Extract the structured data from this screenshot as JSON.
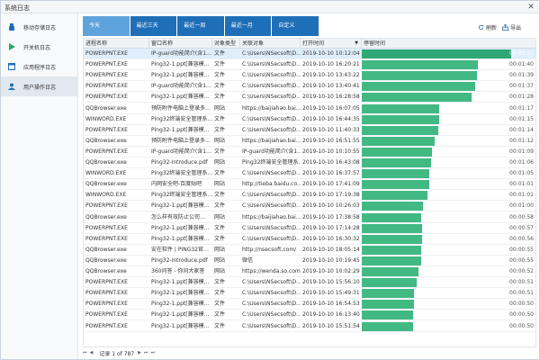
{
  "window": {
    "title": "系统日志",
    "close_glyph": "✕"
  },
  "sidebar": {
    "items": [
      {
        "label": "移动存储日志",
        "icon": "usb-icon",
        "active": false
      },
      {
        "label": "开关机日志",
        "icon": "play-icon",
        "active": false
      },
      {
        "label": "应用程序日志",
        "icon": "app-window-icon",
        "active": false
      },
      {
        "label": "用户操作日志",
        "icon": "user-icon",
        "active": true
      }
    ]
  },
  "tabs": [
    {
      "label": "今天",
      "active": true
    },
    {
      "label": "最近三天",
      "active": false
    },
    {
      "label": "最近一周",
      "active": false
    },
    {
      "label": "最近一月",
      "active": false
    },
    {
      "label": "自定义",
      "active": false
    }
  ],
  "toolbar": {
    "refresh_label": "刷新",
    "export_label": "导出"
  },
  "table": {
    "columns": [
      "进程名称",
      "窗口名称",
      "对象类型",
      "关联对象",
      "打开时间",
      "停留时间"
    ],
    "sort_glyph": "▼",
    "rows": [
      {
        "proc": "POWERPNT.EXE",
        "window": "IP-guard功能简介(含1…",
        "type": "文件",
        "obj": "C:\\Users\\NSecsoft\\D…",
        "open": "2019-10-10 10:12:04",
        "dur": "00:02:21",
        "ratio": 1.0
      },
      {
        "proc": "POWERPNT.EXE",
        "window": "Ping32-1.ppt[兼容模…",
        "type": "文件",
        "obj": "C:\\Users\\NSecsoft\\D…",
        "open": "2019-10-10 16:20:21",
        "dur": "00:01:40",
        "ratio": 0.78
      },
      {
        "proc": "POWERPNT.EXE",
        "window": "Ping32-1.ppt[兼容模…",
        "type": "文件",
        "obj": "C:\\Users\\NSecsoft\\D…",
        "open": "2019-10-10 13:43:22",
        "dur": "00:01:39",
        "ratio": 0.772
      },
      {
        "proc": "POWERPNT.EXE",
        "window": "IP-guard功能简介(含1…",
        "type": "文件",
        "obj": "C:\\Users\\NSecsoft\\D…",
        "open": "2019-10-10 13:40:41",
        "dur": "00:01:37",
        "ratio": 0.757
      },
      {
        "proc": "POWERPNT.EXE",
        "window": "Ping32-1.ppt[兼容模…",
        "type": "文件",
        "obj": "C:\\Users\\NSecsoft\\D…",
        "open": "2019-10-10 16:28:58",
        "dur": "00:01:28",
        "ratio": 0.737
      },
      {
        "proc": "QQBrowser.exe",
        "window": "预防附件电脑上登录多…",
        "type": "网站",
        "obj": "https://baijiahao.bai…",
        "open": "2019-10-10 16:07:05",
        "dur": "00:01:17",
        "ratio": 0.517
      },
      {
        "proc": "WINWORD.EXE",
        "window": "Ping32终端安全管理系…",
        "type": "文件",
        "obj": "C:\\Users\\NSecsoft\\D…",
        "open": "2019-10-10 16:44:35",
        "dur": "00:01:15",
        "ratio": 0.517
      },
      {
        "proc": "POWERPNT.EXE",
        "window": "Ping32-1.ppt[兼容模…",
        "type": "文件",
        "obj": "C:\\Users\\NSecsoft\\D…",
        "open": "2019-10-10 11:40:33",
        "dur": "00:01:14",
        "ratio": 0.51
      },
      {
        "proc": "QQBrowser.exe",
        "window": "预防附件电脑上登录多…",
        "type": "网站",
        "obj": "https://baijiahao.bai…",
        "open": "2019-10-10 16:51:55",
        "dur": "00:01:12",
        "ratio": 0.49
      },
      {
        "proc": "POWERPNT.EXE",
        "window": "IP-guard功能简介(含1…",
        "type": "文件",
        "obj": "IP-guard功能简介(含1…",
        "open": "2019-10-10 10:10:55",
        "dur": "00:01:09",
        "ratio": 0.472
      },
      {
        "proc": "QQBrowser.exe",
        "window": "Ping32-Introduce.pdf",
        "type": "网站",
        "obj": "Ping32终端安全管理系…",
        "open": "2019-10-10 16:43:08",
        "dur": "00:01:06",
        "ratio": 0.462
      },
      {
        "proc": "WINWORD.EXE",
        "window": "Ping32终端安全管理系…",
        "type": "文件",
        "obj": "C:\\Users\\NSecsoft\\D…",
        "open": "2019-10-10 16:37:57",
        "dur": "00:01:05",
        "ratio": 0.451
      },
      {
        "proc": "QQBrowser.exe",
        "window": "内网安全吧-百度贴吧",
        "type": "网站",
        "obj": "http://tieba.baidu.co…",
        "open": "2019-10-10 17:41:09",
        "dur": "00:01:01",
        "ratio": 0.451
      },
      {
        "proc": "WINWORD.EXE",
        "window": "Ping32终端安全管理系…",
        "type": "文件",
        "obj": "C:\\Users\\NSecsoft\\D…",
        "open": "2019-10-10 17:19:38",
        "dur": "00:01:01",
        "ratio": 0.441
      },
      {
        "proc": "POWERPNT.EXE",
        "window": "Ping32-1.ppt[兼容模…",
        "type": "文件",
        "obj": "C:\\Users\\NSecsoft\\D…",
        "open": "2019-10-10 10:26:03",
        "dur": "00:01:00",
        "ratio": 0.41
      },
      {
        "proc": "QQBrowser.exe",
        "window": "怎么样有效防止公司…",
        "type": "网站",
        "obj": "https://baijiahao.bai…",
        "open": "2019-10-10 17:38:58",
        "dur": "00:00:58",
        "ratio": 0.4
      },
      {
        "proc": "POWERPNT.EXE",
        "window": "Ping32-1.ppt[兼容模…",
        "type": "文件",
        "obj": "C:\\Users\\NSecsoft\\D…",
        "open": "2019-10-10 17:14:28",
        "dur": "00:00:57",
        "ratio": 0.405
      },
      {
        "proc": "POWERPNT.EXE",
        "window": "Ping32-1.ppt[兼容模…",
        "type": "文件",
        "obj": "C:\\Users\\NSecsoft\\D…",
        "open": "2019-10-10 16:30:32",
        "dur": "00:00:56",
        "ratio": 0.405
      },
      {
        "proc": "QQBrowser.exe",
        "window": "安在软件 | PING32官…",
        "type": "网站",
        "obj": "http://nsecsoft.com/",
        "open": "2019-10-10 18:05:14",
        "dur": "00:00:55",
        "ratio": 0.4
      },
      {
        "proc": "QQBrowser.exe",
        "window": "Ping32-Introduce.pdf",
        "type": "网站",
        "obj": "微信",
        "open": "2019-10-10 10:19:45",
        "dur": "00:00:55",
        "ratio": 0.395
      },
      {
        "proc": "QQBrowser.exe",
        "window": "360问答 - 你问大家答",
        "type": "网站",
        "obj": "https://wenda.so.com/",
        "open": "2019-10-10 10:02:29",
        "dur": "00:00:52",
        "ratio": 0.38
      },
      {
        "proc": "POWERPNT.EXE",
        "window": "Ping32-1.ppt[兼容模…",
        "type": "文件",
        "obj": "C:\\Users\\NSecsoft\\D…",
        "open": "2019-10-10 15:56:10",
        "dur": "00:00:51",
        "ratio": 0.37
      },
      {
        "proc": "POWERPNT.EXE",
        "window": "Ping32-1.ppt[兼容模…",
        "type": "文件",
        "obj": "C:\\Users\\NSecsoft\\D…",
        "open": "2019-10-10 15:49:31",
        "dur": "00:00:51",
        "ratio": 0.35
      },
      {
        "proc": "POWERPNT.EXE",
        "window": "Ping32-1.ppt[兼容模…",
        "type": "文件",
        "obj": "C:\\Users\\NSecsoft\\D…",
        "open": "2019-10-10 16:54:53",
        "dur": "00:00:50",
        "ratio": 0.35
      },
      {
        "proc": "POWERPNT.EXE",
        "window": "Ping32-1.ppt[兼容模…",
        "type": "文件",
        "obj": "C:\\Users\\NSecsoft\\D…",
        "open": "2019-10-10 16:13:40",
        "dur": "00:00:50",
        "ratio": 0.343
      },
      {
        "proc": "POWERPNT.EXE",
        "window": "Ping32-1.ppt[兼容模…",
        "type": "文件",
        "obj": "C:\\Users\\NSecsoft\\D…",
        "open": "2019-10-10 15:51:54",
        "dur": "00:00:50",
        "ratio": 0.343
      }
    ]
  },
  "pager": {
    "first": "⏮",
    "prev": "◀",
    "text": "记录 1 of 787",
    "next": "▶",
    "last": "⏭",
    "end": "⏭"
  },
  "colors": {
    "tab_bg": "#1f6fb8",
    "tab_active": "#5fa3dd",
    "bar": "#42b983",
    "selected_row": "#dfeefb"
  }
}
